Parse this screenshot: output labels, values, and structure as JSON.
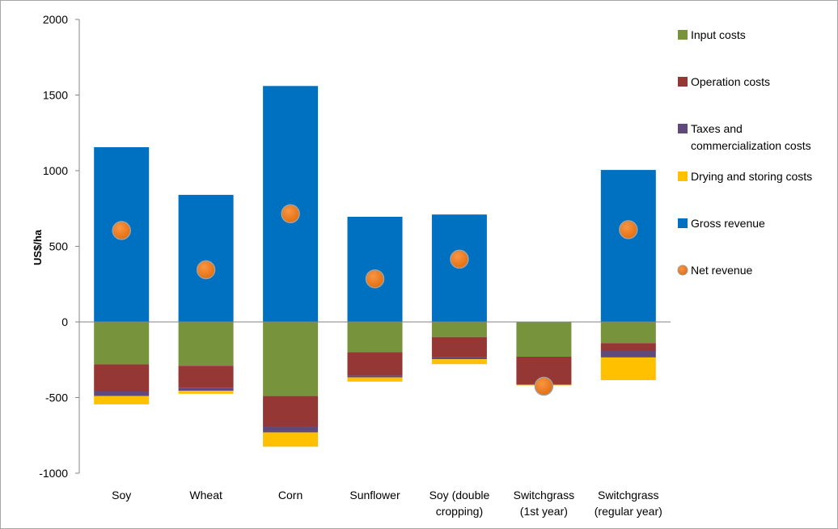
{
  "chart_data": {
    "type": "bar",
    "stacked": true,
    "title": "",
    "xlabel": "",
    "ylabel": "US$/ha",
    "ylim": [
      -1000,
      2000
    ],
    "yticks": [
      2000,
      1500,
      1000,
      500,
      0,
      -500,
      -1000
    ],
    "grid": false,
    "legend_position": "right",
    "categories": [
      [
        "Soy"
      ],
      [
        "Wheat"
      ],
      [
        "Corn"
      ],
      [
        "Sunflower"
      ],
      [
        "Soy (double",
        "cropping)"
      ],
      [
        "Switchgrass",
        "(1st year)"
      ],
      [
        "Switchgrass",
        "(regular year)"
      ]
    ],
    "series": [
      {
        "name": "Input costs",
        "legend_lines": [
          "Input costs"
        ],
        "color": "#77933c",
        "kind": "bar",
        "values": [
          -280,
          -290,
          -490,
          -200,
          -100,
          -230,
          -140
        ]
      },
      {
        "name": "Operation costs",
        "legend_lines": [
          "Operation costs"
        ],
        "color": "#953735",
        "kind": "bar",
        "values": [
          -180,
          -145,
          -200,
          -155,
          -135,
          -185,
          -50
        ]
      },
      {
        "name": "Taxes and commercialization costs",
        "legend_lines": [
          "Taxes and",
          "commercialization costs"
        ],
        "color": "#604a7b",
        "kind": "bar",
        "values": [
          -30,
          -20,
          -40,
          -12,
          -12,
          0,
          -45
        ]
      },
      {
        "name": "Drying and storing costs",
        "legend_lines": [
          "Drying and  storing costs"
        ],
        "color": "#ffc000",
        "kind": "bar",
        "values": [
          -55,
          -20,
          -95,
          -28,
          -32,
          -5,
          -150
        ]
      },
      {
        "name": "Gross revenue",
        "legend_lines": [
          "Gross revenue"
        ],
        "color": "#0070c0",
        "kind": "bar",
        "values": [
          1155,
          840,
          1560,
          695,
          710,
          0,
          1005
        ]
      },
      {
        "name": "Net revenue",
        "legend_lines": [
          "Net revenue"
        ],
        "color": "#e46c0a",
        "kind": "marker",
        "values": [
          605,
          345,
          715,
          285,
          415,
          -425,
          610
        ]
      }
    ]
  }
}
